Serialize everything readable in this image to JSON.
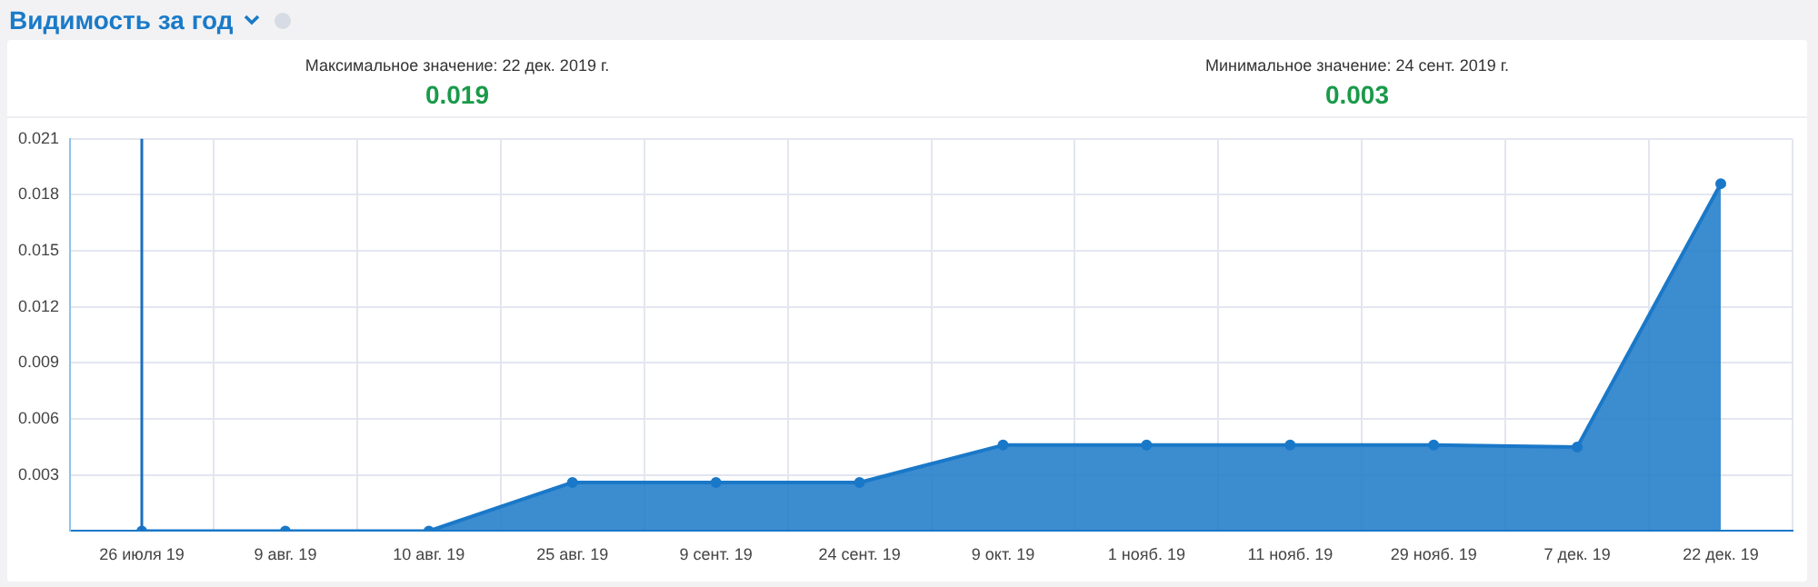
{
  "chart_data": {
    "type": "area",
    "title": "Видимость за год",
    "annotations": [
      "Максимальное значение: 22 дек. 2019 г.",
      "0.019",
      "Минимальное значение: 24 сент. 2019 г.",
      "0.003"
    ],
    "categories": [
      "26 июля 19",
      "9 авг. 19",
      "10 авг. 19",
      "25 авг. 19",
      "9 сент. 19",
      "24 сент. 19",
      "9 окт. 19",
      "1 нояб. 19",
      "11 нояб. 19",
      "29 нояб. 19",
      "7 дек. 19",
      "22 дек. 19"
    ],
    "series": [
      {
        "color": "#1a78c8",
        "values": [
          0,
          0,
          0,
          0.0026,
          0.0026,
          0.0026,
          0.0046,
          0.0046,
          0.0046,
          0.0046,
          0.0045,
          0.0186
        ]
      }
    ],
    "ylim": [
      0,
      0.021
    ],
    "yticks": [
      {
        "value": 0,
        "label": null
      },
      0.003,
      0.006,
      0.009,
      0.012,
      0.015,
      0.018,
      0.021
    ],
    "ref_lines": [
      {
        "axis": "x",
        "value": "26 июля 19",
        "color": "#1a6fc0"
      }
    ],
    "grid": true,
    "marker": "circle",
    "legend": false
  }
}
